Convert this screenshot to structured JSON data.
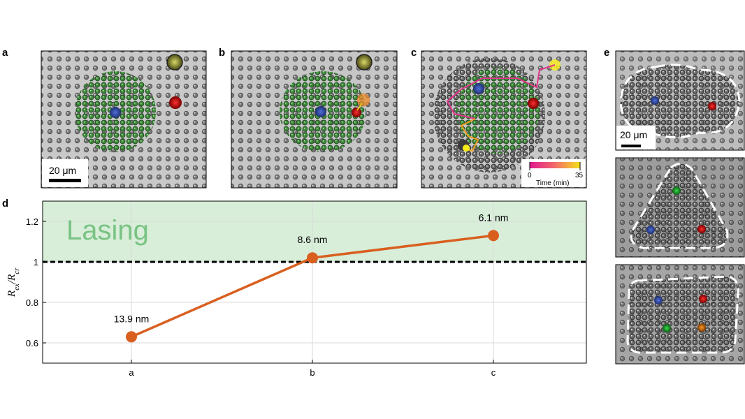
{
  "panel_labels": {
    "a": "a",
    "b": "b",
    "c": "c",
    "d": "d",
    "e": "e"
  },
  "scale_bar_label": "20 μm",
  "colorbar": {
    "min_label": "0",
    "max_label": "35",
    "title": "Time (min)"
  },
  "region_label": "Lasing",
  "colors": {
    "series": "#d95f1f",
    "lasing_fill": "#d8eed9",
    "lasing_text": "#79c383",
    "threshold": "#000000"
  },
  "chart_data": {
    "type": "line",
    "categories": [
      "a",
      "b",
      "c"
    ],
    "values": [
      0.63,
      1.02,
      1.13
    ],
    "point_labels": [
      "13.9 nm",
      "8.6 nm",
      "6.1 nm"
    ],
    "ylabel": "R_ex/R_cr",
    "ylabel_main": "R",
    "ylabel_sub1": "ex",
    "ylabel_mid": "/R",
    "ylabel_sub2": "cr",
    "ylim": [
      0.5,
      1.3
    ],
    "yticks": [
      0.6,
      0.8,
      1,
      1.2
    ],
    "ytick_labels": [
      "0.6",
      "0.8",
      "1",
      "1.2"
    ],
    "threshold": 1,
    "lasing_region": [
      1,
      1.3
    ],
    "grid": true
  }
}
